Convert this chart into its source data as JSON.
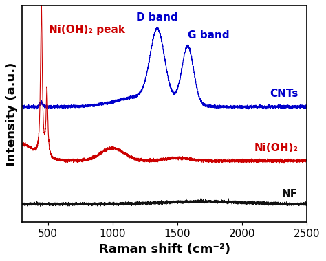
{
  "x_min": 300,
  "x_max": 2500,
  "xlabel": "Raman shift (cm⁻²)",
  "ylabel": "Intensity (a.u.)",
  "line_color_cnts": "#0000cc",
  "line_color_nioh2": "#cc0000",
  "line_color_nf": "#111111",
  "label_cnts": "CNTs",
  "label_nioh2": "Ni(OH)₂",
  "label_nf": "NF",
  "annotation_d_band": "D band",
  "annotation_g_band": "G band",
  "annotation_nioh2_peak": "Ni(OH)₂ peak",
  "tick_fontsize": 11,
  "label_fontsize": 13,
  "annotation_fontsize": 11,
  "cnts_baseline": 0.62,
  "nioh2_baseline": 0.32,
  "nf_baseline": 0.08
}
